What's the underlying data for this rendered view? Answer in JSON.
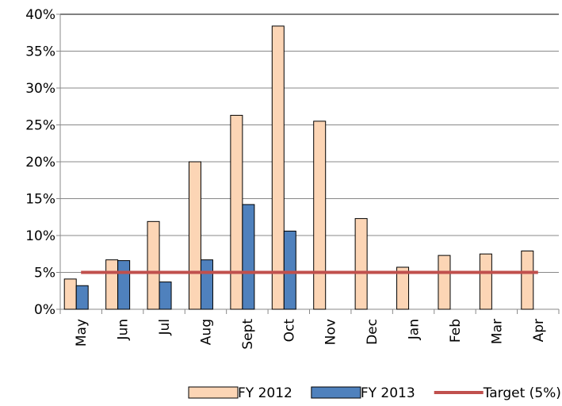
{
  "chart_data": {
    "type": "bar",
    "categories": [
      "May",
      "Jun",
      "Jul",
      "Aug",
      "Sept",
      "Oct",
      "Nov",
      "Dec",
      "Jan",
      "Feb",
      "Mar",
      "Apr"
    ],
    "series": [
      {
        "name": "FY 2012",
        "type": "bar",
        "color": "#fcd5b5",
        "values": [
          4.1,
          6.7,
          11.9,
          20.0,
          26.3,
          38.4,
          25.5,
          12.3,
          5.7,
          7.3,
          7.5,
          7.9
        ]
      },
      {
        "name": "FY 2013",
        "type": "bar",
        "color": "#4f81bd",
        "values": [
          3.2,
          6.6,
          3.7,
          6.7,
          14.2,
          10.6,
          null,
          null,
          null,
          null,
          null,
          null
        ]
      },
      {
        "name": "Target (5%)",
        "type": "line",
        "color": "#c0504d",
        "values": [
          5,
          5,
          5,
          5,
          5,
          5,
          5,
          5,
          5,
          5,
          5,
          5
        ]
      }
    ],
    "ylim": [
      0,
      40
    ],
    "yticks": [
      {
        "value": 0,
        "label": "0%"
      },
      {
        "value": 5,
        "label": "5%"
      },
      {
        "value": 10,
        "label": "10%"
      },
      {
        "value": 15,
        "label": "15%"
      },
      {
        "value": 20,
        "label": "20%"
      },
      {
        "value": 25,
        "label": "25%"
      },
      {
        "value": 30,
        "label": "30%"
      },
      {
        "value": 35,
        "label": "35%"
      },
      {
        "value": 40,
        "label": "40%"
      }
    ],
    "grid": true,
    "legend": "bottom"
  }
}
